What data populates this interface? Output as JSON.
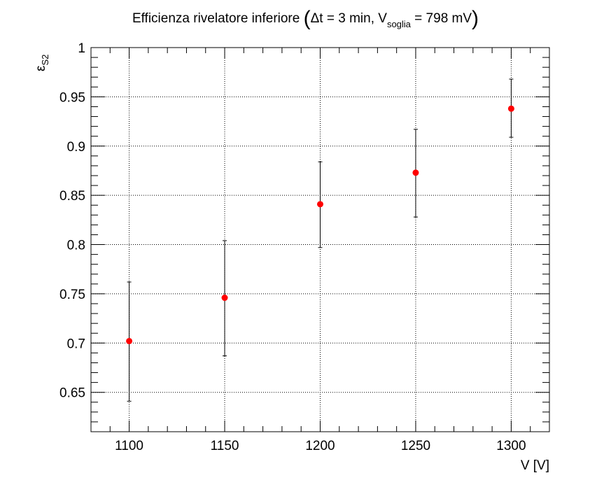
{
  "chart_data": {
    "type": "scatter",
    "title": {
      "main": "Efficienza rivelatore inferiore",
      "paren_open": "(",
      "paren_close": ")",
      "inner_prefix": "Δt = 3 min, V",
      "inner_sub": "soglia",
      "inner_suffix": " = 798 mV"
    },
    "xlabel": "V [V]",
    "ylabel_main": "ε",
    "ylabel_sub": "S2",
    "xlim": [
      1080,
      1320
    ],
    "ylim": [
      0.61,
      1.0
    ],
    "x_ticks": [
      1100,
      1150,
      1200,
      1250,
      1300
    ],
    "y_ticks": [
      0.65,
      0.7,
      0.75,
      0.8,
      0.85,
      0.9,
      0.95,
      1
    ],
    "y_tick_labels": [
      "0.65",
      "0.7",
      "0.75",
      "0.8",
      "0.85",
      "0.9",
      "0.95",
      "1"
    ],
    "grid": true,
    "marker_color": "#ff0000",
    "error_bar_color": "#000000",
    "points": [
      {
        "x": 1100,
        "y": 0.702,
        "ylow": 0.641,
        "yhigh": 0.762
      },
      {
        "x": 1150,
        "y": 0.746,
        "ylow": 0.687,
        "yhigh": 0.804
      },
      {
        "x": 1200,
        "y": 0.841,
        "ylow": 0.797,
        "yhigh": 0.884
      },
      {
        "x": 1250,
        "y": 0.873,
        "ylow": 0.828,
        "yhigh": 0.917
      },
      {
        "x": 1300,
        "y": 0.938,
        "ylow": 0.909,
        "yhigh": 0.968
      }
    ]
  }
}
